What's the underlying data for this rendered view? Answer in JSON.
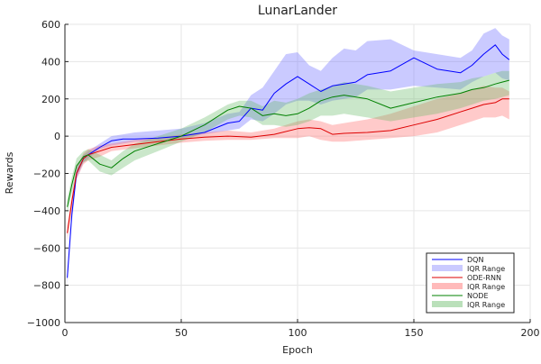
{
  "chart_data": {
    "type": "line",
    "title": "LunarLander",
    "xlabel": "Epoch",
    "ylabel": "Rewards",
    "xlim": [
      0,
      200
    ],
    "ylim": [
      -1000,
      600
    ],
    "xticks": [
      0,
      50,
      100,
      150,
      200
    ],
    "yticks": [
      -1000,
      -800,
      -600,
      -400,
      -200,
      0,
      200,
      400,
      600
    ],
    "grid": true,
    "legend_position": "bottom-right",
    "legend": [
      "DQN",
      "IQR Range",
      "ODE-RNN",
      "IQR Range",
      "NODE",
      "IQR Range"
    ],
    "series": [
      {
        "name": "DQN",
        "band_name": "IQR Range",
        "color": "#0000ff",
        "band_color": "#6666ff",
        "x": [
          1,
          3,
          5,
          8,
          10,
          15,
          20,
          25,
          30,
          40,
          50,
          60,
          70,
          75,
          80,
          85,
          90,
          95,
          100,
          105,
          110,
          115,
          120,
          125,
          130,
          140,
          150,
          160,
          170,
          175,
          180,
          185,
          188,
          191
        ],
        "median": [
          -760,
          -420,
          -200,
          -120,
          -100,
          -60,
          -25,
          -15,
          -15,
          -10,
          0,
          20,
          70,
          80,
          150,
          140,
          230,
          280,
          320,
          280,
          240,
          270,
          280,
          290,
          330,
          350,
          420,
          360,
          340,
          380,
          440,
          490,
          440,
          410
        ],
        "q1": [
          -800,
          -460,
          -230,
          -140,
          -120,
          -70,
          -50,
          -40,
          -30,
          -25,
          -10,
          10,
          30,
          40,
          90,
          80,
          120,
          170,
          190,
          190,
          170,
          190,
          200,
          210,
          250,
          250,
          270,
          260,
          250,
          290,
          320,
          340,
          310,
          300
        ],
        "q3": [
          -720,
          -380,
          -170,
          -100,
          -80,
          -40,
          0,
          10,
          20,
          30,
          40,
          70,
          120,
          130,
          220,
          260,
          350,
          440,
          450,
          380,
          350,
          420,
          470,
          460,
          510,
          520,
          460,
          440,
          420,
          460,
          550,
          580,
          540,
          520
        ]
      },
      {
        "name": "ODE-RNN",
        "band_name": "IQR Range",
        "color": "#dd0000",
        "band_color": "#ff6666",
        "x": [
          1,
          3,
          5,
          8,
          10,
          15,
          20,
          30,
          40,
          50,
          60,
          70,
          80,
          90,
          100,
          105,
          110,
          115,
          120,
          130,
          140,
          150,
          160,
          170,
          175,
          180,
          185,
          188,
          191
        ],
        "median": [
          -520,
          -350,
          -200,
          -120,
          -100,
          -80,
          -60,
          -45,
          -30,
          -15,
          -5,
          0,
          -5,
          10,
          40,
          45,
          40,
          10,
          15,
          20,
          30,
          60,
          90,
          130,
          150,
          170,
          180,
          200,
          200
        ],
        "q1": [
          -560,
          -390,
          -230,
          -150,
          -130,
          -110,
          -80,
          -65,
          -50,
          -35,
          -25,
          -20,
          -20,
          -10,
          -10,
          0,
          -20,
          -30,
          -30,
          -20,
          -10,
          0,
          20,
          60,
          80,
          100,
          100,
          110,
          90
        ],
        "q3": [
          -480,
          -310,
          -170,
          -90,
          -70,
          -50,
          -40,
          -20,
          -10,
          10,
          20,
          30,
          20,
          40,
          80,
          90,
          80,
          60,
          70,
          90,
          120,
          160,
          200,
          230,
          250,
          270,
          260,
          260,
          240
        ]
      },
      {
        "name": "NODE",
        "band_name": "IQR Range",
        "color": "#008000",
        "band_color": "#66bb66",
        "x": [
          1,
          3,
          5,
          8,
          10,
          15,
          20,
          25,
          30,
          40,
          50,
          60,
          70,
          75,
          80,
          85,
          90,
          95,
          100,
          105,
          110,
          115,
          120,
          130,
          140,
          150,
          160,
          170,
          175,
          180,
          185,
          188,
          191
        ],
        "median": [
          -380,
          -260,
          -160,
          -110,
          -100,
          -150,
          -170,
          -120,
          -80,
          -40,
          0,
          60,
          140,
          160,
          150,
          110,
          120,
          110,
          120,
          150,
          190,
          210,
          220,
          200,
          150,
          180,
          210,
          230,
          250,
          260,
          280,
          290,
          300
        ],
        "q1": [
          -420,
          -300,
          -200,
          -140,
          -130,
          -190,
          -210,
          -170,
          -130,
          -80,
          -30,
          20,
          90,
          110,
          100,
          60,
          60,
          50,
          60,
          80,
          110,
          110,
          120,
          100,
          80,
          100,
          120,
          150,
          170,
          190,
          200,
          210,
          220
        ],
        "q3": [
          -340,
          -220,
          -120,
          -80,
          -70,
          -100,
          -130,
          -80,
          -40,
          0,
          40,
          100,
          170,
          190,
          190,
          160,
          190,
          180,
          200,
          230,
          250,
          270,
          290,
          270,
          240,
          260,
          280,
          290,
          310,
          320,
          340,
          350,
          350
        ]
      }
    ]
  }
}
